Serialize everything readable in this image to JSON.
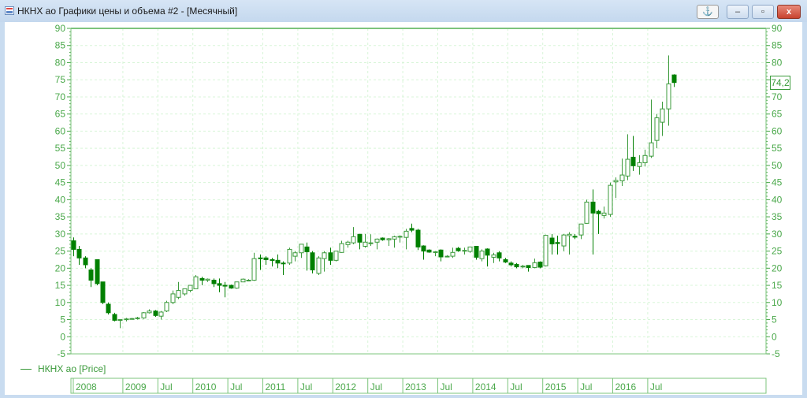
{
  "window": {
    "title": "НКНХ ао Графики цены и объема #2 - [Месячный]",
    "buttons": [
      {
        "name": "anchor",
        "icon": "anchor-icon",
        "glyph": "⚓"
      },
      {
        "name": "minimize",
        "icon": "minimize-icon",
        "glyph": "–"
      },
      {
        "name": "maximize",
        "icon": "maximize-icon",
        "glyph": "▫"
      },
      {
        "name": "close",
        "icon": "close-icon",
        "glyph": "x"
      }
    ]
  },
  "legend": {
    "label": "НКНХ ао [Price]"
  },
  "last_price_label": "74,2",
  "colors": {
    "axis": "#4aa84a",
    "bull_outline": "#3a9a3a",
    "bear_fill": "#008000",
    "grid": "#d8f5d8"
  },
  "chart_data": {
    "type": "candlestick",
    "ylim": [
      -5,
      90
    ],
    "ytick_step": 5,
    "grid": true,
    "x_labels": [
      {
        "label": "2008",
        "month": "2008-04"
      },
      {
        "label": "2009",
        "month": "2009-01"
      },
      {
        "label": "Jul",
        "month": "2009-07"
      },
      {
        "label": "2010",
        "month": "2010-01"
      },
      {
        "label": "Jul",
        "month": "2010-07"
      },
      {
        "label": "2011",
        "month": "2011-01"
      },
      {
        "label": "Jul",
        "month": "2011-07"
      },
      {
        "label": "2012",
        "month": "2012-01"
      },
      {
        "label": "Jul",
        "month": "2012-07"
      },
      {
        "label": "2013",
        "month": "2013-01"
      },
      {
        "label": "Jul",
        "month": "2013-07"
      },
      {
        "label": "2014",
        "month": "2014-01"
      },
      {
        "label": "Jul",
        "month": "2014-07"
      },
      {
        "label": "2015",
        "month": "2015-01"
      },
      {
        "label": "Jul",
        "month": "2015-07"
      },
      {
        "label": "2016",
        "month": "2016-01"
      },
      {
        "label": "Jul",
        "month": "2016-07"
      }
    ],
    "start_month": "2008-04",
    "ohlc": [
      [
        28,
        29,
        23.5,
        25.5
      ],
      [
        25.5,
        26.5,
        21,
        23
      ],
      [
        23,
        23.5,
        20,
        21
      ],
      [
        19.5,
        20,
        14.5,
        16.5
      ],
      [
        22.5,
        22.5,
        15,
        15.5
      ],
      [
        16,
        16,
        9.5,
        10
      ],
      [
        9.5,
        10,
        6.5,
        7
      ],
      [
        6.5,
        7,
        4.5,
        4.8
      ],
      [
        5,
        5,
        2.5,
        5
      ],
      [
        5,
        5.5,
        4.5,
        5.2
      ],
      [
        5.2,
        5.5,
        5,
        5.3
      ],
      [
        5.3,
        5.8,
        5,
        5.5
      ],
      [
        5.5,
        7.2,
        5.2,
        7
      ],
      [
        7,
        8,
        6.8,
        7.5
      ],
      [
        7.5,
        7.8,
        5.8,
        6.2
      ],
      [
        6,
        7.5,
        5,
        7.2
      ],
      [
        7.5,
        10.5,
        7.2,
        10
      ],
      [
        10,
        13.5,
        9.5,
        12.5
      ],
      [
        11.5,
        16,
        11,
        13.5
      ],
      [
        12.5,
        14,
        12,
        14
      ],
      [
        13.5,
        15,
        13,
        15
      ],
      [
        14,
        18,
        14,
        17.5
      ],
      [
        17,
        17.5,
        15,
        16.5
      ],
      [
        16.5,
        17,
        16,
        16.8
      ],
      [
        16.5,
        17,
        14.5,
        15.5
      ],
      [
        15.5,
        17,
        13,
        15
      ],
      [
        15,
        16,
        11.5,
        14.8
      ],
      [
        15,
        15.2,
        14,
        14.2
      ],
      [
        14.2,
        16,
        14,
        16
      ],
      [
        16,
        17,
        16,
        16.8
      ],
      [
        16.5,
        16.8,
        16.2,
        16.5
      ],
      [
        16.5,
        24.5,
        16.3,
        22.8
      ],
      [
        23,
        24,
        19.5,
        22.8
      ],
      [
        23,
        23.5,
        21,
        22.5
      ],
      [
        22.5,
        23,
        20.5,
        22.3
      ],
      [
        22.3,
        24,
        20,
        21.5
      ],
      [
        21.5,
        22,
        18,
        21.3
      ],
      [
        21.5,
        26,
        21,
        25.5
      ],
      [
        23.5,
        25,
        22,
        24.5
      ],
      [
        24.5,
        27,
        23,
        27
      ],
      [
        26.2,
        27.5,
        19.3,
        24.8
      ],
      [
        24.5,
        25,
        18.5,
        19.5
      ],
      [
        18.5,
        23.5,
        18,
        23
      ],
      [
        22.8,
        25,
        19,
        24.5
      ],
      [
        24.5,
        26,
        21,
        22.3
      ],
      [
        22.3,
        25,
        22,
        25
      ],
      [
        24.6,
        28,
        24.5,
        27.2
      ],
      [
        26.9,
        28,
        26,
        27.6
      ],
      [
        27.4,
        32,
        27,
        29.2
      ],
      [
        29.9,
        30,
        25.5,
        27.6
      ],
      [
        26.4,
        30,
        26,
        27.6
      ],
      [
        27.3,
        29.9,
        26.5,
        27.4
      ],
      [
        27.6,
        28.7,
        25.5,
        28.5
      ],
      [
        28.8,
        29,
        28,
        28.3
      ],
      [
        28.3,
        28.8,
        26.5,
        28.6
      ],
      [
        28.5,
        29.5,
        26,
        29.2
      ],
      [
        29.2,
        29.6,
        27.5,
        29.3
      ],
      [
        29,
        31.5,
        25.5,
        30.8
      ],
      [
        31.6,
        33,
        30.5,
        31.1
      ],
      [
        31.1,
        31.5,
        25.3,
        26.2
      ],
      [
        26.5,
        26.7,
        22.5,
        25
      ],
      [
        25.3,
        25.5,
        24.5,
        24.7
      ],
      [
        24.7,
        25,
        23.5,
        24.8
      ],
      [
        25.3,
        25.5,
        22,
        23.3
      ],
      [
        23.5,
        23.8,
        23.2,
        23.5
      ],
      [
        23.5,
        26,
        23,
        24.6
      ],
      [
        25.8,
        26.2,
        24.8,
        25.1
      ],
      [
        25.1,
        26,
        24,
        25.2
      ],
      [
        24.9,
        26.3,
        24.5,
        26.2
      ],
      [
        26.4,
        26.5,
        22.5,
        23.2
      ],
      [
        22.8,
        25.5,
        22,
        25
      ],
      [
        25.6,
        25.8,
        20.5,
        23.8
      ],
      [
        23.2,
        24.5,
        21.5,
        23.9
      ],
      [
        24.5,
        25,
        22,
        23
      ],
      [
        22.5,
        23,
        21.5,
        21.8
      ],
      [
        21.5,
        22,
        20.5,
        21
      ],
      [
        21.1,
        21.5,
        20,
        20.4
      ],
      [
        20.6,
        21,
        20,
        20.6
      ],
      [
        20.8,
        20.8,
        19,
        20.2
      ],
      [
        20.2,
        22.8,
        20,
        21.6
      ],
      [
        21.8,
        22,
        20,
        20.3
      ],
      [
        20.7,
        29.8,
        20.5,
        29.6
      ],
      [
        28.8,
        30,
        24,
        27.1
      ],
      [
        27.5,
        29.5,
        24,
        27.2
      ],
      [
        26.5,
        30,
        25,
        29.7
      ],
      [
        29.5,
        30.5,
        24,
        29.9
      ],
      [
        29.3,
        30,
        28.5,
        29.1
      ],
      [
        29.7,
        33,
        28.5,
        32.9
      ],
      [
        33.1,
        40,
        33,
        39.3
      ],
      [
        39.3,
        43,
        24,
        36.1
      ],
      [
        36.6,
        37,
        30,
        35.9
      ],
      [
        35.4,
        38,
        34.5,
        36.1
      ],
      [
        35.7,
        45,
        35,
        44.2
      ],
      [
        45.2,
        46.5,
        40.5,
        45.6
      ],
      [
        45.5,
        52,
        44,
        47.2
      ],
      [
        46.9,
        59.1,
        45.7,
        51.8
      ],
      [
        52.4,
        58.6,
        48.4,
        49.9
      ],
      [
        49.7,
        53,
        47.3,
        50.8
      ],
      [
        50.8,
        54.6,
        49.7,
        52.9
      ],
      [
        52.7,
        69.2,
        52.2,
        56.6
      ],
      [
        57.3,
        65,
        55,
        63.9
      ],
      [
        62.6,
        68.6,
        58.6,
        66.5
      ],
      [
        66.5,
        82.1,
        61.6,
        73.8
      ],
      [
        76.4,
        76.6,
        72.9,
        74.2
      ]
    ]
  }
}
